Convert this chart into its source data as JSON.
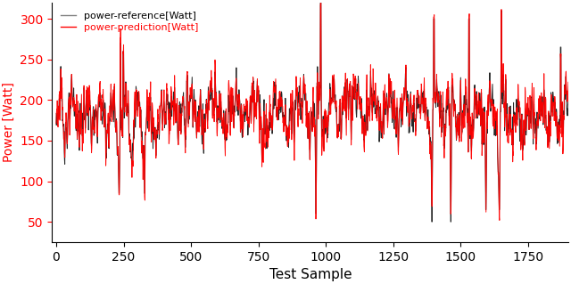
{
  "title": "",
  "xlabel": "Test Sample",
  "ylabel": "Power [Watt]",
  "legend_labels": [
    "power-reference[Watt]",
    "power-prediction[Watt]"
  ],
  "ref_color": "black",
  "pred_color": "red",
  "ref_legend_color": "gray",
  "ylim": [
    25,
    320
  ],
  "xlim": [
    -15,
    1900
  ],
  "yticks": [
    50,
    100,
    150,
    200,
    250,
    300
  ],
  "xticks": [
    0,
    250,
    500,
    750,
    1000,
    1250,
    1500,
    1750
  ],
  "ref_linewidth": 0.7,
  "pred_linewidth": 0.7,
  "figsize": [
    6.4,
    3.19
  ],
  "dpi": 100,
  "n_samples": 1900,
  "ylabel_color": "red",
  "ytick_color": "red",
  "ylabel_fontsize": 10,
  "xlabel_fontsize": 11,
  "legend_fontsize": 8
}
